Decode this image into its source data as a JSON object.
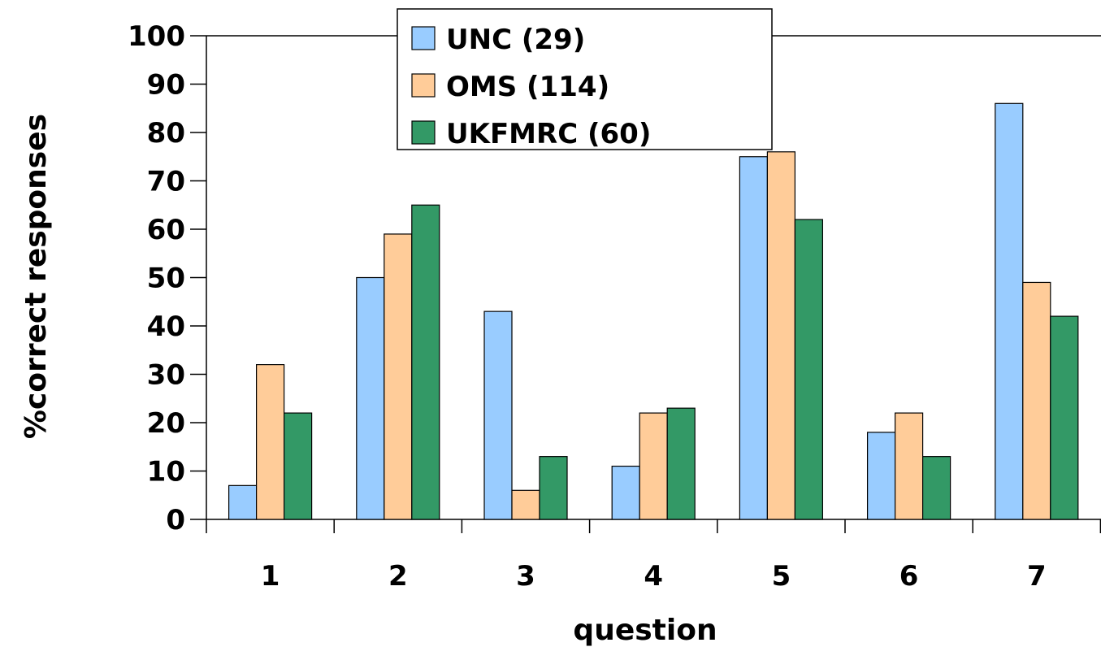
{
  "chart_data": {
    "type": "bar",
    "xlabel": "question",
    "ylabel": "%correct responses",
    "ylim": [
      0,
      100
    ],
    "yticks": [
      0,
      10,
      20,
      30,
      40,
      50,
      60,
      70,
      80,
      90,
      100
    ],
    "categories": [
      "1",
      "2",
      "3",
      "4",
      "5",
      "6",
      "7"
    ],
    "legend_position": "top-center",
    "grid": false,
    "series": [
      {
        "name": "UNC (29)",
        "color": "#99ccff",
        "values": [
          7,
          50,
          43,
          11,
          75,
          18,
          86
        ]
      },
      {
        "name": "OMS (114)",
        "color": "#ffcc99",
        "values": [
          32,
          59,
          6,
          22,
          76,
          22,
          49
        ]
      },
      {
        "name": "UKFMRC (60)",
        "color": "#339966",
        "values": [
          22,
          65,
          13,
          23,
          62,
          13,
          42
        ]
      }
    ]
  }
}
